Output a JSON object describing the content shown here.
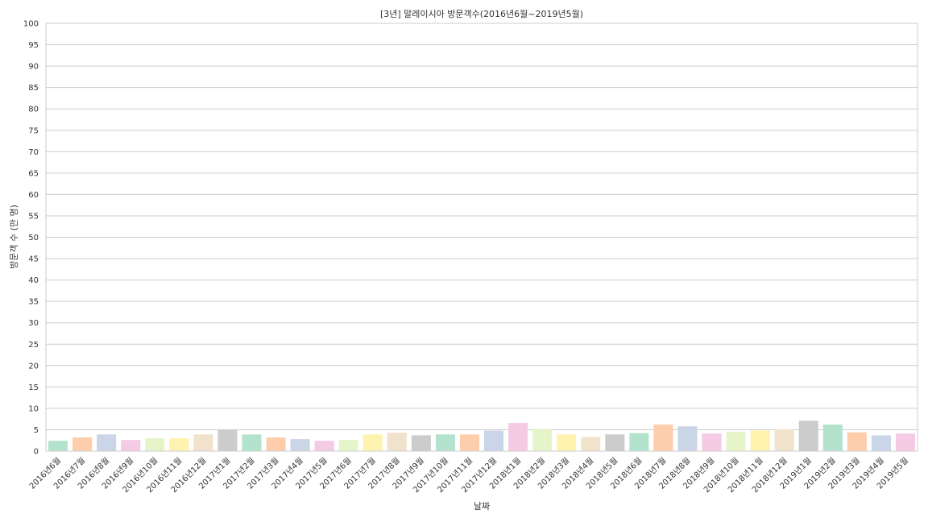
{
  "chart_data": {
    "type": "bar",
    "title": "[3년] 말레이시아 방문객수(2016년6월~2019년5월)",
    "xlabel": "날짜",
    "ylabel": "방문객 수 (만 명)",
    "ylim": [
      0,
      100
    ],
    "yticks": [
      0,
      5,
      10,
      15,
      20,
      25,
      30,
      35,
      40,
      45,
      50,
      55,
      60,
      65,
      70,
      75,
      80,
      85,
      90,
      95,
      100
    ],
    "grid": true,
    "categories": [
      "2016년6월",
      "2016년7월",
      "2016년8월",
      "2016년9월",
      "2016년10월",
      "2016년11월",
      "2016년12월",
      "2017년1월",
      "2017년2월",
      "2017년3월",
      "2017년4월",
      "2017년5월",
      "2017년6월",
      "2017년7월",
      "2017년8월",
      "2017년9월",
      "2017년10월",
      "2017년11월",
      "2017년12월",
      "2018년1월",
      "2018년2월",
      "2018년3월",
      "2018년4월",
      "2018년5월",
      "2018년6월",
      "2018년7월",
      "2018년8월",
      "2018년9월",
      "2018년10월",
      "2018년11월",
      "2018년12월",
      "2019년1월",
      "2019년2월",
      "2019년3월",
      "2019년4월",
      "2019년5월"
    ],
    "values": [
      2.4,
      3.2,
      3.9,
      2.6,
      3.0,
      3.0,
      3.9,
      5.0,
      3.9,
      3.2,
      2.8,
      2.4,
      2.6,
      3.9,
      4.3,
      3.7,
      3.9,
      3.9,
      4.8,
      6.6,
      5.2,
      3.9,
      3.3,
      3.9,
      4.2,
      6.2,
      5.8,
      4.1,
      4.5,
      4.8,
      5.1,
      7.1,
      6.2,
      4.4,
      3.7,
      4.1
    ],
    "palette": [
      "#b3e2cd",
      "#fdcdac",
      "#cbd5e8",
      "#f4cae4",
      "#e6f5c9",
      "#fff2ae",
      "#f1e2cc",
      "#cccccc"
    ]
  }
}
